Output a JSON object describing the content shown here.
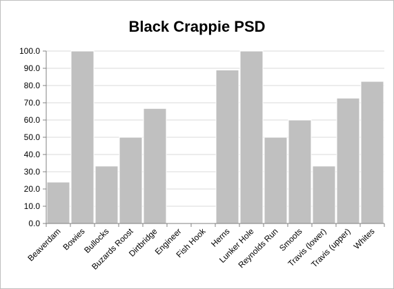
{
  "chart_data": {
    "type": "bar",
    "title": "Black Crappie PSD",
    "xlabel": "",
    "ylabel": "",
    "categories": [
      "Beaverdam",
      "Bowies",
      "Bullocks",
      "Buzards Roost",
      "Dirtbridge",
      "Engineer",
      "Fish Hook",
      "Herns",
      "Lunker Hole",
      "Reynolds Run",
      "Smoots",
      "Travis (lower)",
      "Travis (upper)",
      "Whites"
    ],
    "values": [
      24.0,
      100.0,
      33.3,
      50.0,
      66.7,
      0,
      0,
      89.0,
      100.0,
      50.0,
      60.0,
      33.3,
      72.7,
      82.4
    ],
    "ylim": [
      0,
      100
    ],
    "yticks": [
      "0.0",
      "10.0",
      "20.0",
      "30.0",
      "40.0",
      "50.0",
      "60.0",
      "70.0",
      "80.0",
      "90.0",
      "100.0"
    ],
    "grid": true,
    "legend": "none",
    "colors": {
      "bar": "#c0c0c0",
      "bar_edge": "#ffffff",
      "grid": "#d9d9d9",
      "axis": "#808080"
    }
  }
}
